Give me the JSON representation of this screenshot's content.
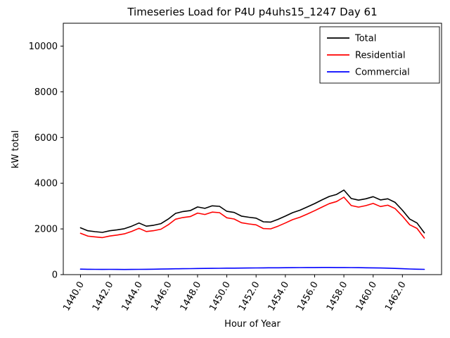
{
  "chart_data": {
    "type": "line",
    "title": "Timeseries Load for P4U p4uhs15_1247  Day 61",
    "xlabel": "Hour of Year",
    "ylabel": "kW total",
    "ylim": [
      0,
      11000
    ],
    "x_start": 1440.0,
    "x_step": 0.5,
    "x_ticks": [
      1440,
      1442,
      1444,
      1446,
      1448,
      1450,
      1452,
      1454,
      1456,
      1458,
      1460,
      1462
    ],
    "x_tick_labels": [
      "1440.0",
      "1442.0",
      "1444.0",
      "1446.0",
      "1448.0",
      "1450.0",
      "1452.0",
      "1454.0",
      "1456.0",
      "1458.0",
      "1460.0",
      "1462.0"
    ],
    "y_ticks": [
      0,
      2000,
      4000,
      6000,
      8000,
      10000
    ],
    "y_tick_labels": [
      "0",
      "2000",
      "4000",
      "6000",
      "8000",
      "10000"
    ],
    "grid": false,
    "legend_position": "upper right",
    "series": [
      {
        "name": "Total",
        "color": "#000000",
        "values": [
          2050,
          1920,
          1880,
          1850,
          1920,
          1960,
          2010,
          2120,
          2260,
          2120,
          2160,
          2230,
          2430,
          2680,
          2760,
          2800,
          2960,
          2900,
          3010,
          2990,
          2770,
          2720,
          2560,
          2510,
          2470,
          2310,
          2300,
          2420,
          2560,
          2710,
          2820,
          2960,
          3110,
          3270,
          3420,
          3510,
          3700,
          3330,
          3260,
          3320,
          3410,
          3270,
          3320,
          3160,
          2820,
          2430,
          2260,
          1830
        ]
      },
      {
        "name": "Residential",
        "color": "#ff0000",
        "values": [
          1810,
          1685,
          1650,
          1622,
          1690,
          1732,
          1785,
          1892,
          2028,
          1885,
          1922,
          1988,
          2180,
          2425,
          2500,
          2538,
          2692,
          2630,
          2735,
          2712,
          2488,
          2435,
          2272,
          2220,
          2178,
          2015,
          2002,
          2120,
          2258,
          2405,
          2512,
          2650,
          2798,
          2955,
          3105,
          3198,
          3390,
          3022,
          2955,
          3020,
          3115,
          2980,
          3038,
          2890,
          2562,
          2182,
          2022,
          1600
        ]
      },
      {
        "name": "Commercial",
        "color": "#0000ff",
        "values": [
          240,
          235,
          230,
          228,
          230,
          228,
          225,
          228,
          232,
          235,
          238,
          242,
          250,
          255,
          260,
          262,
          268,
          270,
          275,
          278,
          282,
          285,
          288,
          290,
          292,
          295,
          298,
          300,
          302,
          305,
          308,
          310,
          312,
          315,
          315,
          312,
          310,
          308,
          305,
          300,
          295,
          290,
          282,
          270,
          258,
          248,
          238,
          230
        ]
      }
    ]
  }
}
